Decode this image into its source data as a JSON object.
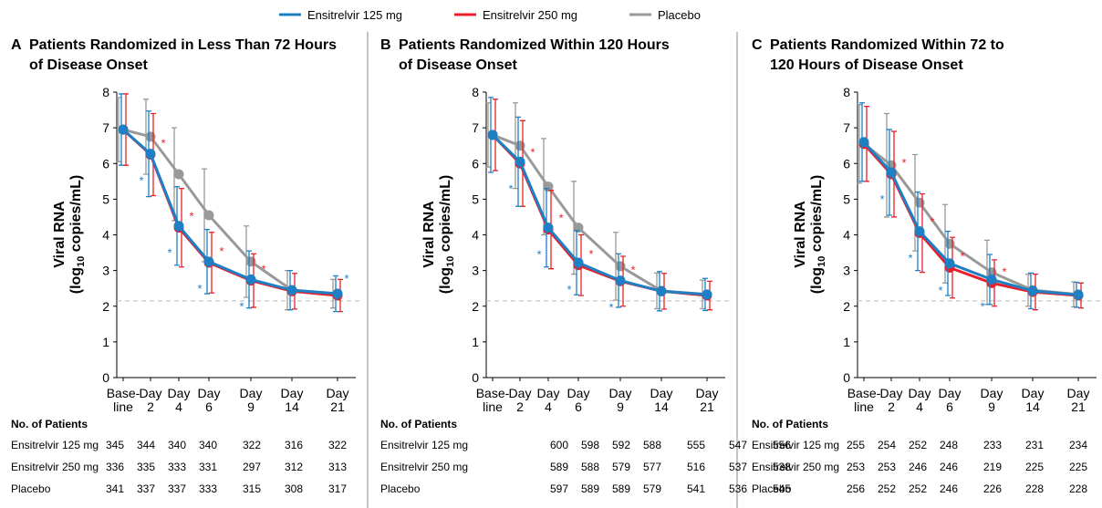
{
  "legend_position": "top",
  "chart_data": [
    {
      "type": "line",
      "panel": "A",
      "title": [
        "Patients Randomized in Less Than 72 Hours",
        "of Disease Onset"
      ],
      "ylabel": "Viral RNA",
      "ylabel_unit": {
        "prefix": "(log",
        "sub": "10",
        "suffix": " copies/mL)"
      },
      "categories": [
        [
          "Base-",
          "line"
        ],
        [
          "Day",
          "2"
        ],
        [
          "Day",
          "4"
        ],
        [
          "Day",
          "6"
        ],
        [
          "Day",
          "9"
        ],
        [
          "Day",
          "14"
        ],
        [
          "Day",
          "21"
        ]
      ],
      "ylim": [
        0,
        8
      ],
      "yticks": [
        0,
        1,
        2,
        3,
        4,
        5,
        6,
        7,
        8
      ],
      "reference_line": 2.15,
      "series": [
        {
          "name": "Ensitrelvir 125 mg",
          "color": "#1f7fc4",
          "values": [
            6.95,
            6.27,
            4.25,
            3.25,
            2.75,
            2.45,
            2.35
          ],
          "errors": [
            1.0,
            1.2,
            1.1,
            0.9,
            0.8,
            0.55,
            0.5
          ]
        },
        {
          "name": "Ensitrelvir 250 mg",
          "color": "#e8202a",
          "values": [
            6.95,
            6.25,
            4.2,
            3.22,
            2.72,
            2.42,
            2.3
          ],
          "errors": [
            1.0,
            1.15,
            1.1,
            0.85,
            0.75,
            0.5,
            0.45
          ]
        },
        {
          "name": "Placebo",
          "color": "#999999",
          "values": [
            6.95,
            6.75,
            5.7,
            4.55,
            3.25,
            2.45,
            2.35
          ],
          "errors": [
            0.9,
            1.05,
            1.3,
            1.3,
            1.0,
            0.55,
            0.4
          ]
        }
      ],
      "annotations": [
        {
          "text": "*",
          "series": 0,
          "index": 1
        },
        {
          "text": "*",
          "series": 0,
          "index": 2
        },
        {
          "text": "*",
          "series": 0,
          "index": 3
        },
        {
          "text": "*",
          "series": 0,
          "index": 4
        },
        {
          "text": "*",
          "series": 0,
          "index": 6
        },
        {
          "text": "*",
          "series": 1,
          "index": 1
        },
        {
          "text": "*",
          "series": 1,
          "index": 2
        },
        {
          "text": "*",
          "series": 1,
          "index": 3
        },
        {
          "text": "*",
          "series": 1,
          "index": 4
        }
      ],
      "patients": {
        "title": "No. of Patients",
        "rows": [
          {
            "name": "Ensitrelvir 125 mg",
            "values": [
              345,
              344,
              340,
              340,
              322,
              316,
              322
            ]
          },
          {
            "name": "Ensitrelvir 250 mg",
            "values": [
              336,
              335,
              333,
              331,
              297,
              312,
              313
            ]
          },
          {
            "name": "Placebo",
            "values": [
              341,
              337,
              337,
              333,
              315,
              308,
              317
            ]
          }
        ]
      }
    },
    {
      "type": "line",
      "panel": "B",
      "title": [
        "Patients Randomized Within 120 Hours",
        "of Disease Onset"
      ],
      "ylabel": "Viral RNA",
      "ylabel_unit": {
        "prefix": "(log",
        "sub": "10",
        "suffix": " copies/mL)"
      },
      "categories": [
        [
          "Base-",
          "line"
        ],
        [
          "Day",
          "2"
        ],
        [
          "Day",
          "4"
        ],
        [
          "Day",
          "6"
        ],
        [
          "Day",
          "9"
        ],
        [
          "Day",
          "14"
        ],
        [
          "Day",
          "21"
        ]
      ],
      "ylim": [
        0,
        8
      ],
      "yticks": [
        0,
        1,
        2,
        3,
        4,
        5,
        6,
        7,
        8
      ],
      "reference_line": 2.15,
      "series": [
        {
          "name": "Ensitrelvir 125 mg",
          "color": "#1f7fc4",
          "values": [
            6.8,
            6.05,
            4.2,
            3.22,
            2.72,
            2.42,
            2.33
          ],
          "errors": [
            1.05,
            1.25,
            1.1,
            0.9,
            0.75,
            0.55,
            0.45
          ]
        },
        {
          "name": "Ensitrelvir 250 mg",
          "color": "#e8202a",
          "values": [
            6.8,
            6.0,
            4.15,
            3.15,
            2.7,
            2.42,
            2.3
          ],
          "errors": [
            1.0,
            1.2,
            1.1,
            0.85,
            0.7,
            0.5,
            0.4
          ]
        },
        {
          "name": "Placebo",
          "color": "#999999",
          "values": [
            6.8,
            6.5,
            5.35,
            4.2,
            3.12,
            2.43,
            2.33
          ],
          "errors": [
            0.9,
            1.2,
            1.35,
            1.3,
            0.95,
            0.5,
            0.4
          ]
        }
      ],
      "annotations": [
        {
          "text": "*",
          "series": 0,
          "index": 1
        },
        {
          "text": "*",
          "series": 0,
          "index": 2
        },
        {
          "text": "*",
          "series": 0,
          "index": 3
        },
        {
          "text": "*",
          "series": 0,
          "index": 4
        },
        {
          "text": "*",
          "series": 1,
          "index": 1
        },
        {
          "text": "*",
          "series": 1,
          "index": 2
        },
        {
          "text": "*",
          "series": 1,
          "index": 3
        },
        {
          "text": "*",
          "series": 1,
          "index": 4
        }
      ],
      "patients": {
        "title": "No. of Patients",
        "rows": [
          {
            "name": "Ensitrelvir 125 mg",
            "values": [
              600,
              598,
              592,
              588,
              555,
              547,
              556
            ]
          },
          {
            "name": "Ensitrelvir 250 mg",
            "values": [
              589,
              588,
              579,
              577,
              516,
              537,
              538
            ]
          },
          {
            "name": "Placebo",
            "values": [
              597,
              589,
              589,
              579,
              541,
              536,
              545
            ]
          }
        ]
      }
    },
    {
      "type": "line",
      "panel": "C",
      "title": [
        "Patients Randomized Within 72 to",
        "120 Hours of Disease Onset"
      ],
      "ylabel": "Viral RNA",
      "ylabel_unit": {
        "prefix": "(log",
        "sub": "10",
        "suffix": " copies/mL)"
      },
      "categories": [
        [
          "Base-",
          "line"
        ],
        [
          "Day",
          "2"
        ],
        [
          "Day",
          "4"
        ],
        [
          "Day",
          "6"
        ],
        [
          "Day",
          "9"
        ],
        [
          "Day",
          "14"
        ],
        [
          "Day",
          "21"
        ]
      ],
      "ylim": [
        0,
        8
      ],
      "yticks": [
        0,
        1,
        2,
        3,
        4,
        5,
        6,
        7,
        8
      ],
      "reference_line": 2.15,
      "series": [
        {
          "name": "Ensitrelvir 125 mg",
          "color": "#1f7fc4",
          "values": [
            6.6,
            5.75,
            4.1,
            3.2,
            2.75,
            2.43,
            2.32
          ],
          "errors": [
            1.1,
            1.2,
            1.1,
            0.9,
            0.7,
            0.5,
            0.35
          ]
        },
        {
          "name": "Ensitrelvir 250 mg",
          "color": "#e8202a",
          "values": [
            6.55,
            5.7,
            4.05,
            3.08,
            2.65,
            2.4,
            2.3
          ],
          "errors": [
            1.05,
            1.2,
            1.1,
            0.85,
            0.65,
            0.5,
            0.35
          ]
        },
        {
          "name": "Placebo",
          "color": "#999999",
          "values": [
            6.55,
            5.95,
            4.9,
            3.75,
            2.95,
            2.45,
            2.33
          ],
          "errors": [
            1.1,
            1.45,
            1.35,
            1.1,
            0.9,
            0.45,
            0.35
          ]
        }
      ],
      "annotations": [
        {
          "text": "*",
          "series": 0,
          "index": 1
        },
        {
          "text": "*",
          "series": 0,
          "index": 2
        },
        {
          "text": "*",
          "series": 0,
          "index": 3
        },
        {
          "text": "*",
          "series": 0,
          "index": 4
        },
        {
          "text": "*",
          "series": 1,
          "index": 1
        },
        {
          "text": "*",
          "series": 1,
          "index": 2
        },
        {
          "text": "*",
          "series": 1,
          "index": 3
        },
        {
          "text": "*",
          "series": 1,
          "index": 4
        }
      ],
      "patients": {
        "title": "No. of Patients",
        "rows": [
          {
            "name": "Ensitrelvir 125 mg",
            "values": [
              255,
              254,
              252,
              248,
              233,
              231,
              234
            ]
          },
          {
            "name": "Ensitrelvir 250 mg",
            "values": [
              253,
              253,
              246,
              246,
              219,
              225,
              225
            ]
          },
          {
            "name": "Placebo",
            "values": [
              256,
              252,
              252,
              246,
              226,
              228,
              228
            ]
          }
        ]
      }
    }
  ]
}
